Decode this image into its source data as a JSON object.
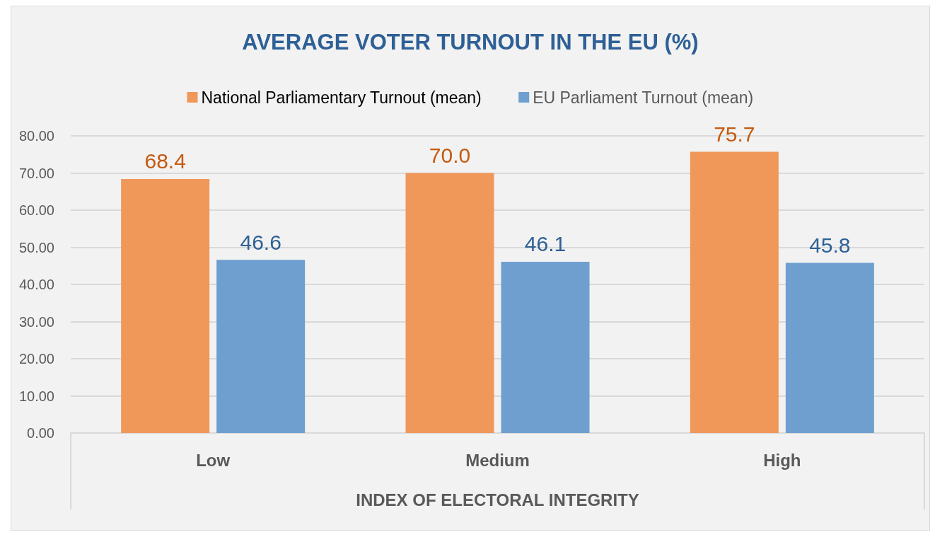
{
  "chart_data": {
    "type": "bar",
    "title": "AVERAGE VOTER TURNOUT IN THE EU (%)",
    "xlabel": "INDEX OF ELECTORAL INTEGRITY",
    "categories": [
      "Low",
      "Medium",
      "High"
    ],
    "series": [
      {
        "name": "National Parliamentary Turnout (mean)",
        "color": "#f0975a",
        "values": [
          68.4,
          70.0,
          75.7
        ],
        "value_labels": [
          "68.4",
          "70.0",
          "75.7"
        ]
      },
      {
        "name": "EU Parliament Turnout (mean)",
        "color": "#6e9fcf",
        "values": [
          46.6,
          46.1,
          45.8
        ],
        "value_labels": [
          "46.6",
          "46.1",
          "45.8"
        ]
      }
    ],
    "ylim": [
      0,
      80
    ],
    "yticks": [
      {
        "value": 0,
        "label": "0.00"
      },
      {
        "value": 10,
        "label": "10.00"
      },
      {
        "value": 20,
        "label": "20.00"
      },
      {
        "value": 30,
        "label": "30.00"
      },
      {
        "value": 40,
        "label": "40.00"
      },
      {
        "value": 50,
        "label": "50.00"
      },
      {
        "value": 60,
        "label": "60.00"
      },
      {
        "value": 70,
        "label": "70.00"
      },
      {
        "value": 80,
        "label": "80.00"
      }
    ],
    "grid": "y",
    "legend": "top"
  }
}
